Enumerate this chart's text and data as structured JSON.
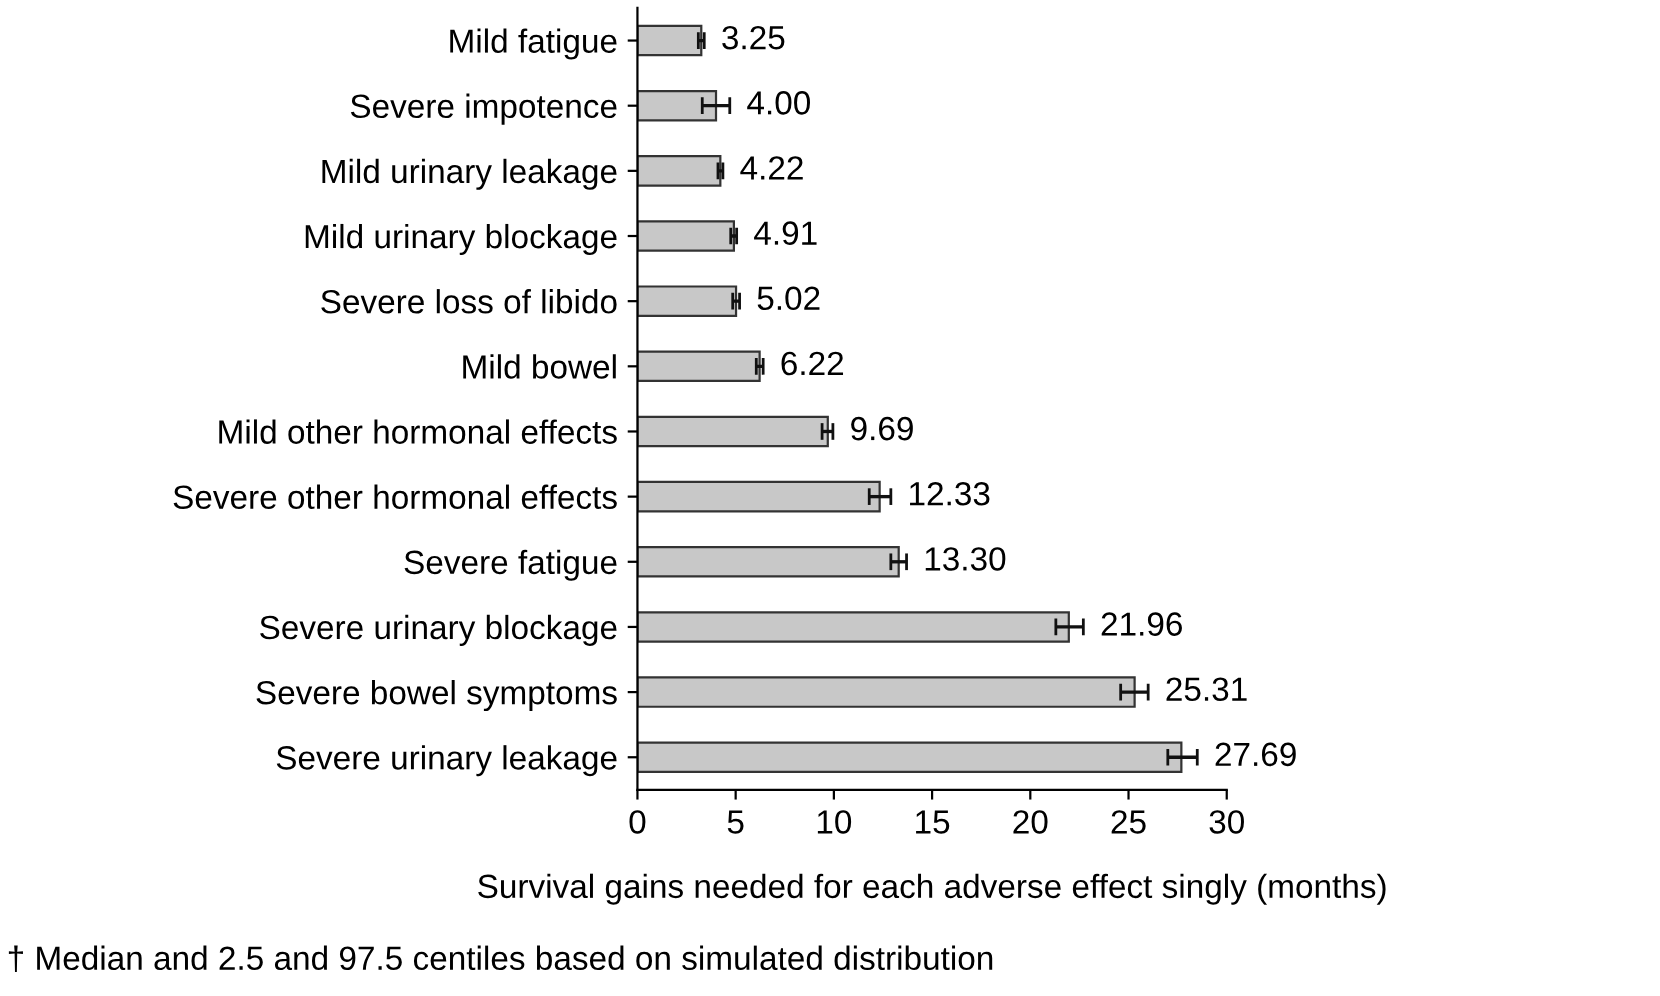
{
  "chart_data": {
    "type": "bar",
    "orientation": "horizontal",
    "xlabel": "Survival gains needed for each adverse effect singly (months)",
    "categories": [
      "Mild fatigue",
      "Severe impotence",
      "Mild urinary leakage",
      "Mild urinary blockage",
      "Severe loss of libido",
      "Mild bowel",
      "Mild other hormonal effects",
      "Severe other hormonal effects",
      "Severe fatigue",
      "Severe urinary blockage",
      "Severe bowel symptoms",
      "Severe urinary leakage"
    ],
    "values": [
      3.25,
      4.0,
      4.22,
      4.91,
      5.02,
      6.22,
      9.69,
      12.33,
      13.3,
      21.96,
      25.31,
      27.69
    ],
    "errors": [
      [
        3.1,
        3.4
      ],
      [
        3.3,
        4.7
      ],
      [
        4.1,
        4.35
      ],
      [
        4.75,
        5.05
      ],
      [
        4.85,
        5.2
      ],
      [
        6.05,
        6.4
      ],
      [
        9.4,
        9.95
      ],
      [
        11.8,
        12.9
      ],
      [
        12.9,
        13.7
      ],
      [
        21.3,
        22.7
      ],
      [
        24.6,
        26.0
      ],
      [
        27.0,
        28.5
      ]
    ],
    "value_labels": [
      "3.25",
      "4.00",
      "4.22",
      "4.91",
      "5.02",
      "6.22",
      "9.69",
      "12.33",
      "13.30",
      "21.96",
      "25.31",
      "27.69"
    ],
    "color": "#c8c8c8",
    "xlim": [
      0,
      30
    ],
    "xticks": [
      0,
      5,
      10,
      15,
      20,
      25,
      30
    ],
    "grid": false,
    "annotations": [
      "† Median and 2.5 and 97.5 centiles based on simulated distribution"
    ]
  }
}
